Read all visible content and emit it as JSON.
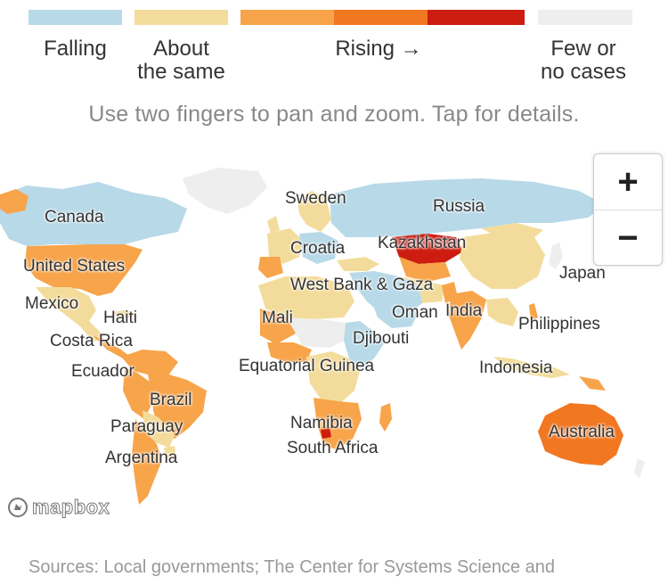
{
  "legend": {
    "colors": [
      "#b8d9e8",
      "#f3dc9b",
      "#f7a44a",
      "#f27721",
      "#cc1d10",
      "#eeeeee"
    ],
    "falling": "Falling",
    "about_same": "About\nthe same",
    "rising": "Rising →",
    "few_cases": "Few or\nno cases"
  },
  "hint": "Use two fingers to pan and zoom. Tap for details.",
  "zoom": {
    "in": "+",
    "out": "−"
  },
  "map_labels": {
    "canada": "Canada",
    "united_states": "United States",
    "mexico": "Mexico",
    "haiti": "Haiti",
    "costa_rica": "Costa Rica",
    "ecuador": "Ecuador",
    "brazil": "Brazil",
    "paraguay": "Paraguay",
    "argentina": "Argentina",
    "sweden": "Sweden",
    "russia": "Russia",
    "croatia": "Croatia",
    "kazakhstan": "Kazakhstan",
    "west_bank_gaza": "West Bank & Gaza",
    "japan": "Japan",
    "mali": "Mali",
    "oman": "Oman",
    "india": "India",
    "philippines": "Philippines",
    "djibouti": "Djibouti",
    "equatorial_guinea": "Equatorial Guinea",
    "indonesia": "Indonesia",
    "namibia": "Namibia",
    "south_africa": "South Africa",
    "australia": "Australia"
  },
  "attribution": "mapbox",
  "sources": "Sources: Local governments; The Center for Systems Science and"
}
